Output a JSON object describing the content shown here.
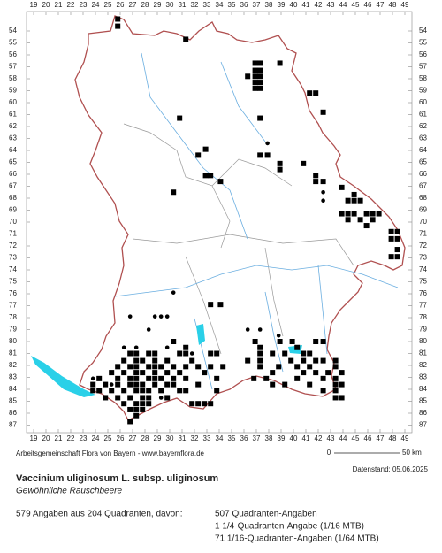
{
  "map": {
    "columns": [
      19,
      20,
      21,
      22,
      23,
      24,
      25,
      26,
      27,
      28,
      29,
      30,
      31,
      32,
      33,
      34,
      35,
      36,
      37,
      38,
      39,
      40,
      41,
      42,
      43,
      44,
      45,
      46,
      47,
      48,
      49
    ],
    "rows": [
      54,
      55,
      56,
      57,
      58,
      59,
      60,
      61,
      62,
      63,
      64,
      65,
      66,
      67,
      68,
      69,
      70,
      71,
      72,
      73,
      74,
      75,
      76,
      77,
      78,
      79,
      80,
      81,
      82,
      83,
      84,
      85,
      86,
      87
    ],
    "square_rows": [
      {
        "row": 53.0,
        "cols": [
          25.8
        ]
      },
      {
        "row": 53.6,
        "cols": [
          25.8
        ]
      },
      {
        "row": 54.7,
        "cols": [
          31.3
        ]
      },
      {
        "row": 56.7,
        "cols": [
          36.9,
          37.3,
          38.9
        ]
      },
      {
        "row": 57.3,
        "cols": [
          36.9,
          37.3
        ]
      },
      {
        "row": 57.8,
        "cols": [
          36.3,
          36.9,
          37.3
        ]
      },
      {
        "row": 58.3,
        "cols": [
          36.9,
          37.3
        ]
      },
      {
        "row": 58.8,
        "cols": [
          36.9,
          37.3
        ]
      },
      {
        "row": 59.2,
        "cols": [
          41.3,
          41.8
        ]
      },
      {
        "row": 60.8,
        "cols": [
          42.4
        ]
      },
      {
        "row": 61.3,
        "cols": [
          30.8,
          37.3
        ]
      },
      {
        "row": 63.9,
        "cols": [
          32.9
        ]
      },
      {
        "row": 64.4,
        "cols": [
          32.3,
          37.3,
          37.9
        ]
      },
      {
        "row": 65.1,
        "cols": [
          38.9,
          40.8
        ]
      },
      {
        "row": 65.6,
        "cols": [
          38.9
        ]
      },
      {
        "row": 66.1,
        "cols": [
          32.9,
          33.3,
          41.8
        ]
      },
      {
        "row": 66.6,
        "cols": [
          34.1,
          41.8,
          42.4
        ]
      },
      {
        "row": 67.1,
        "cols": [
          43.9
        ]
      },
      {
        "row": 67.5,
        "cols": [
          30.3
        ]
      },
      {
        "row": 67.7,
        "cols": [
          44.9
        ]
      },
      {
        "row": 68.2,
        "cols": [
          44.4,
          44.9,
          45.4
        ]
      },
      {
        "row": 69.3,
        "cols": [
          43.9,
          44.4,
          44.9,
          45.9,
          46.4,
          46.9
        ]
      },
      {
        "row": 69.8,
        "cols": [
          44.4,
          45.4,
          46.4
        ]
      },
      {
        "row": 70.3,
        "cols": [
          45.9
        ]
      },
      {
        "row": 70.8,
        "cols": [
          47.9,
          48.4
        ]
      },
      {
        "row": 71.4,
        "cols": [
          47.9,
          48.4
        ]
      },
      {
        "row": 72.3,
        "cols": [
          48.4
        ]
      },
      {
        "row": 72.9,
        "cols": [
          47.9,
          48.4
        ]
      },
      {
        "row": 76.9,
        "cols": [
          33.3,
          34.1
        ]
      },
      {
        "row": 80.0,
        "cols": [
          30.3,
          36.9,
          38.9,
          39.9,
          41.8,
          42.4
        ]
      },
      {
        "row": 80.5,
        "cols": [
          31.3,
          37.3,
          40.3
        ]
      },
      {
        "row": 81.0,
        "cols": [
          26.8,
          27.3,
          28.3,
          28.8,
          30.8,
          31.3,
          33.3,
          33.8,
          37.3,
          38.3,
          39.3,
          40.8,
          41.3
        ]
      },
      {
        "row": 81.6,
        "cols": [
          26.3,
          27.3,
          27.8,
          28.8,
          29.8,
          31.8,
          36.3,
          37.3,
          39.8,
          40.8,
          41.8,
          42.4,
          43.4
        ]
      },
      {
        "row": 82.1,
        "cols": [
          25.8,
          26.8,
          27.3,
          28.3,
          28.8,
          29.3,
          30.3,
          31.3,
          32.3,
          33.3,
          34.3,
          37.3,
          38.8,
          40.3,
          41.3,
          43.4
        ]
      },
      {
        "row": 82.6,
        "cols": [
          25.3,
          26.3,
          27.3,
          27.8,
          28.8,
          29.8,
          30.8,
          32.8,
          38.3,
          40.8,
          41.8,
          42.8,
          43.9
        ]
      },
      {
        "row": 83.1,
        "cols": [
          24.3,
          25.8,
          26.8,
          27.3,
          28.3,
          28.8,
          29.3,
          30.3,
          31.3,
          33.8,
          36.8,
          37.8,
          40.3,
          42.4,
          43.4
        ]
      },
      {
        "row": 83.6,
        "cols": [
          23.8,
          24.8,
          25.8,
          26.8,
          27.3,
          27.8,
          28.8,
          29.8,
          30.3,
          32.3,
          38.3,
          39.3,
          41.3,
          43.4,
          43.9
        ]
      },
      {
        "row": 84.1,
        "cols": [
          23.8,
          24.3,
          25.3,
          26.3,
          27.3,
          27.8,
          28.3,
          29.3,
          30.8,
          31.3,
          33.8,
          42.4,
          43.4
        ]
      },
      {
        "row": 84.7,
        "cols": [
          24.8,
          25.8,
          26.8,
          27.8,
          28.3,
          29.8,
          43.4,
          43.9
        ]
      },
      {
        "row": 85.2,
        "cols": [
          26.3,
          27.3,
          27.8,
          28.3,
          31.8,
          32.3,
          32.8,
          33.3
        ]
      },
      {
        "row": 85.7,
        "cols": [
          26.8,
          27.3,
          27.8
        ]
      },
      {
        "row": 86.2,
        "cols": [
          27.3
        ]
      },
      {
        "row": 86.7,
        "cols": [
          26.8
        ]
      }
    ],
    "dot_rows": [
      {
        "row": 63.4,
        "cols": [
          37.9
        ]
      },
      {
        "row": 67.5,
        "cols": [
          42.4
        ]
      },
      {
        "row": 68.2,
        "cols": [
          42.4
        ]
      },
      {
        "row": 75.9,
        "cols": [
          30.3
        ]
      },
      {
        "row": 77.9,
        "cols": [
          26.8,
          28.8,
          29.3,
          29.8
        ]
      },
      {
        "row": 79.0,
        "cols": [
          28.3,
          36.3,
          37.3
        ]
      },
      {
        "row": 79.5,
        "cols": [
          38.8
        ]
      },
      {
        "row": 80.5,
        "cols": [
          26.3,
          27.3,
          29.8
        ]
      },
      {
        "row": 81.0,
        "cols": [
          31.8
        ]
      },
      {
        "row": 83.1,
        "cols": [
          23.8
        ]
      },
      {
        "row": 83.6,
        "cols": [
          25.3
        ]
      },
      {
        "row": 84.7,
        "cols": [
          29.3
        ]
      }
    ]
  },
  "footer": {
    "credit": "Arbeitsgemeinschaft Flora von Bayern - www.bayernflora.de",
    "scale_start": "0",
    "scale_end": "50 km",
    "date": "Datenstand: 05.06.2025",
    "title": "Vaccinium uliginosum L. subsp. uliginosum",
    "subtitle": "Gewöhnliche Rauschbeere",
    "summary": "579 Angaben aus 204 Quadranten, davon:",
    "details": [
      "507 Quadranten-Angaben",
      "1 1/4-Quadranten-Angabe (1/16 MTB)",
      "71 1/16-Quadranten-Angaben (1/64 MTB)"
    ]
  }
}
